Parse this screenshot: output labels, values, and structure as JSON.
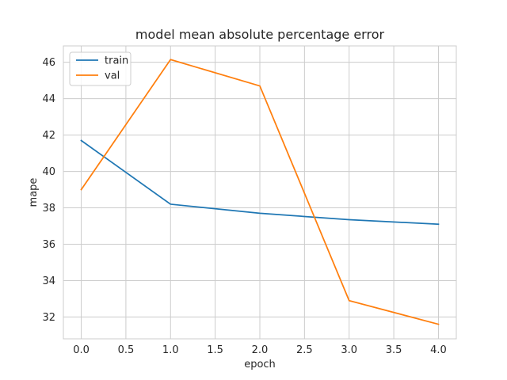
{
  "chart_data": {
    "type": "line",
    "title": "model mean absolute percentage error",
    "xlabel": "epoch",
    "ylabel": "mape",
    "x": [
      0,
      1,
      2,
      3,
      4
    ],
    "xlim": [
      -0.2,
      4.2
    ],
    "ylim": [
      30.8,
      46.9
    ],
    "xticks": [
      0,
      0.5,
      1,
      1.5,
      2,
      2.5,
      3,
      3.5,
      4
    ],
    "xtick_labels": [
      "0.0",
      "0.5",
      "1.0",
      "1.5",
      "2.0",
      "2.5",
      "3.0",
      "3.5",
      "4.0"
    ],
    "yticks": [
      32,
      34,
      36,
      38,
      40,
      42,
      44,
      46
    ],
    "ytick_labels": [
      "32",
      "34",
      "36",
      "38",
      "40",
      "42",
      "44",
      "46"
    ],
    "grid": true,
    "legend_position": "top-left",
    "series": [
      {
        "name": "train",
        "color": "#1f77b4",
        "values": [
          41.7,
          38.2,
          37.7,
          37.35,
          37.1
        ]
      },
      {
        "name": "val",
        "color": "#ff7f0e",
        "values": [
          39.0,
          46.15,
          44.7,
          32.9,
          31.6
        ]
      }
    ]
  }
}
